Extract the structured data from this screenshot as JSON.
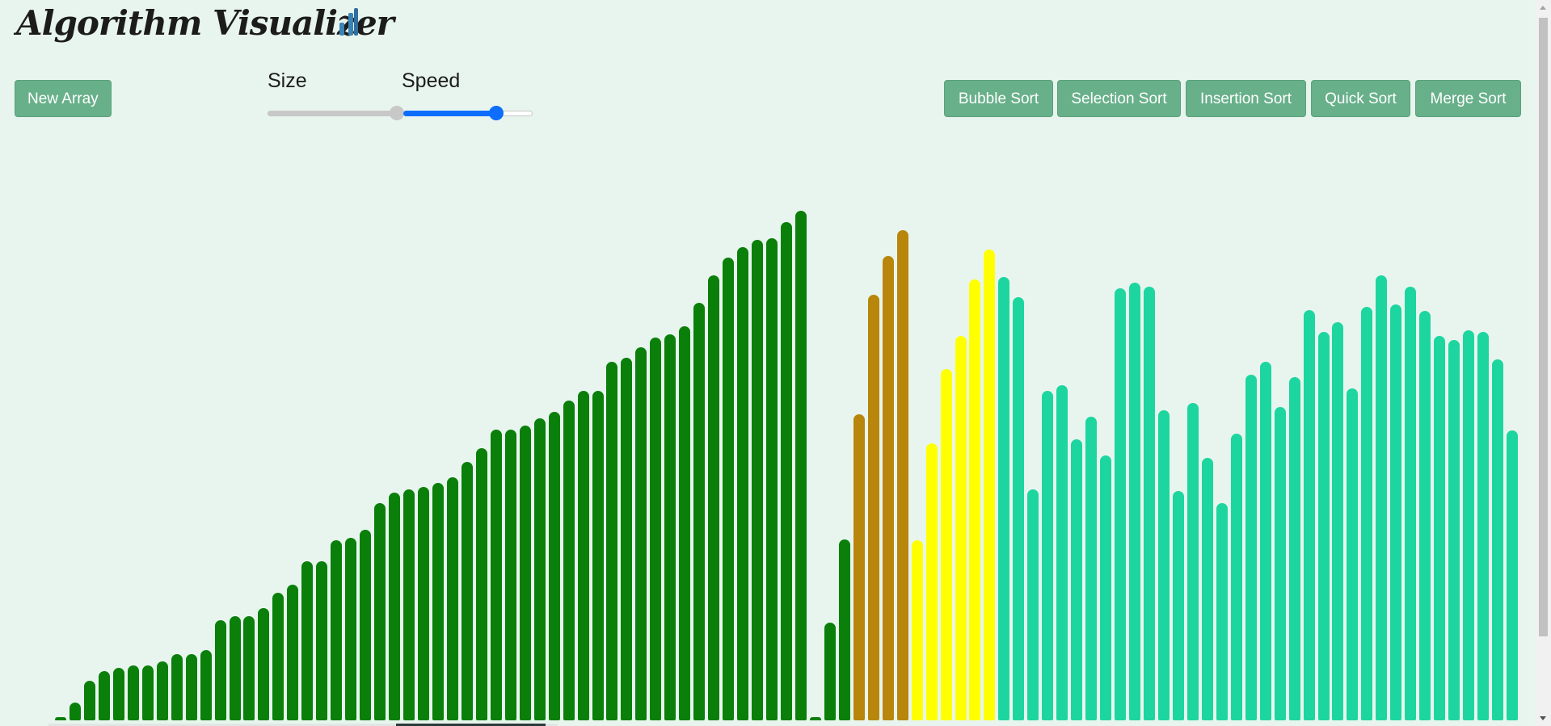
{
  "app": {
    "title": "Algorithm Visualizer",
    "icon": "bar-chart-icon",
    "background": "#e8f5ee"
  },
  "toolbar": {
    "new_array_label": "New Array",
    "size_label": "Size",
    "speed_label": "Speed",
    "size_value": 1.0,
    "speed_value": 0.72,
    "sort_buttons": [
      "Bubble Sort",
      "Selection Sort",
      "Insertion Sort",
      "Quick Sort",
      "Merge Sort"
    ],
    "button_color": "#68b08a"
  },
  "colors": {
    "sorted": "#0a7f0a",
    "comparing": "#b8860b",
    "pivot_range": "#ffff00",
    "unsorted": "#1dd69f",
    "slider_active": "#0d6efd",
    "slider_inactive": "#c8c8c8"
  },
  "chart_data": {
    "type": "bar",
    "values": [
      2,
      13,
      29,
      36,
      38,
      40,
      40,
      43,
      48,
      48,
      51,
      73,
      76,
      76,
      82,
      93,
      99,
      116,
      116,
      131,
      133,
      139,
      158,
      166,
      168,
      170,
      173,
      177,
      188,
      198,
      212,
      212,
      215,
      220,
      225,
      233,
      240,
      240,
      261,
      264,
      272,
      279,
      281,
      287,
      304,
      324,
      337,
      345,
      350,
      351,
      363,
      371,
      2,
      71,
      132,
      223,
      310,
      338,
      357,
      131,
      202,
      256,
      280,
      321,
      343,
      323,
      308,
      168,
      240,
      244,
      205,
      221,
      193,
      315,
      319,
      316,
      226,
      167,
      231,
      191,
      158,
      209,
      252,
      261,
      228,
      250,
      299,
      283,
      290,
      242,
      301,
      324,
      303,
      316,
      298,
      280,
      277,
      284,
      283,
      263,
      211
    ],
    "states": [
      "sorted",
      "sorted",
      "sorted",
      "sorted",
      "sorted",
      "sorted",
      "sorted",
      "sorted",
      "sorted",
      "sorted",
      "sorted",
      "sorted",
      "sorted",
      "sorted",
      "sorted",
      "sorted",
      "sorted",
      "sorted",
      "sorted",
      "sorted",
      "sorted",
      "sorted",
      "sorted",
      "sorted",
      "sorted",
      "sorted",
      "sorted",
      "sorted",
      "sorted",
      "sorted",
      "sorted",
      "sorted",
      "sorted",
      "sorted",
      "sorted",
      "sorted",
      "sorted",
      "sorted",
      "sorted",
      "sorted",
      "sorted",
      "sorted",
      "sorted",
      "sorted",
      "sorted",
      "sorted",
      "sorted",
      "sorted",
      "sorted",
      "sorted",
      "sorted",
      "sorted",
      "sorted",
      "sorted",
      "sorted",
      "comparing",
      "comparing",
      "comparing",
      "comparing",
      "pivot_range",
      "pivot_range",
      "pivot_range",
      "pivot_range",
      "pivot_range",
      "pivot_range",
      "unsorted",
      "unsorted",
      "unsorted",
      "unsorted",
      "unsorted",
      "unsorted",
      "unsorted",
      "unsorted",
      "unsorted",
      "unsorted",
      "unsorted",
      "unsorted",
      "unsorted",
      "unsorted",
      "unsorted",
      "unsorted",
      "unsorted",
      "unsorted",
      "unsorted",
      "unsorted",
      "unsorted",
      "unsorted",
      "unsorted",
      "unsorted",
      "unsorted",
      "unsorted",
      "unsorted",
      "unsorted",
      "unsorted",
      "unsorted",
      "unsorted",
      "unsorted",
      "unsorted",
      "unsorted",
      "unsorted",
      "unsorted"
    ]
  }
}
